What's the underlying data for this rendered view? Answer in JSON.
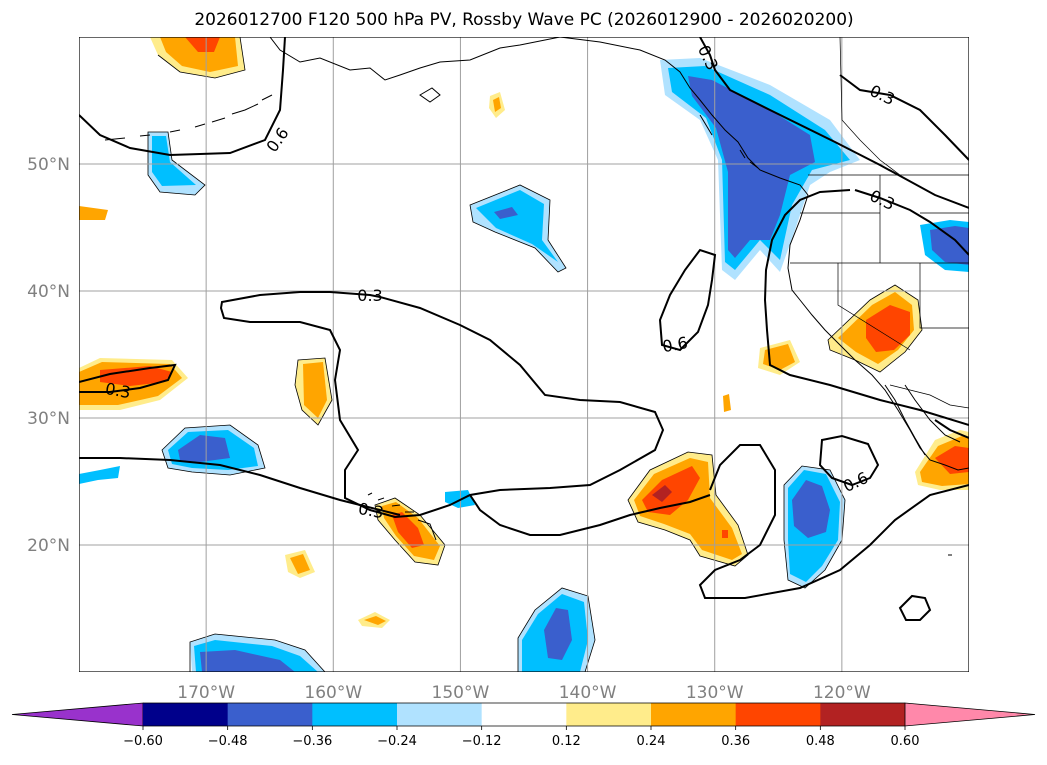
{
  "title": "2026012700 F120 500 hPa PV, Rossby Wave PC (2026012900 - 2026020200)",
  "map": {
    "lon_range": [
      -180,
      -110
    ],
    "lat_range": [
      10,
      60
    ],
    "lon_ticks": [
      {
        "value": -170,
        "label": "170°W"
      },
      {
        "value": -160,
        "label": "160°W"
      },
      {
        "value": -150,
        "label": "150°W"
      },
      {
        "value": -140,
        "label": "140°W"
      },
      {
        "value": -130,
        "label": "130°W"
      },
      {
        "value": -120,
        "label": "120°W"
      }
    ],
    "lat_ticks": [
      {
        "value": 50,
        "label": "50°N"
      },
      {
        "value": 40,
        "label": "40°N"
      },
      {
        "value": 30,
        "label": "30°N"
      },
      {
        "value": 20,
        "label": "20°N"
      }
    ],
    "grid": true
  },
  "colorbar": {
    "orientation": "horizontal",
    "colors": [
      "#9932cc",
      "#00008b",
      "#3a5fcd",
      "#00bfff",
      "#b0e2ff",
      "#ffffff",
      "#ffec8b",
      "#ffa500",
      "#ff4500",
      "#b22222",
      "#ff88aa"
    ],
    "ticks": [
      "−0.60",
      "−0.48",
      "−0.36",
      "−0.24",
      "−0.12",
      "0.12",
      "0.24",
      "0.36",
      "0.48",
      "0.60"
    ]
  },
  "contour_labels": [
    "0.6",
    "0.3",
    "0.3",
    "0.3",
    "0.6",
    "0.3",
    "0.3",
    "0.3",
    "0.6",
    "0.3",
    "0.6"
  ]
}
